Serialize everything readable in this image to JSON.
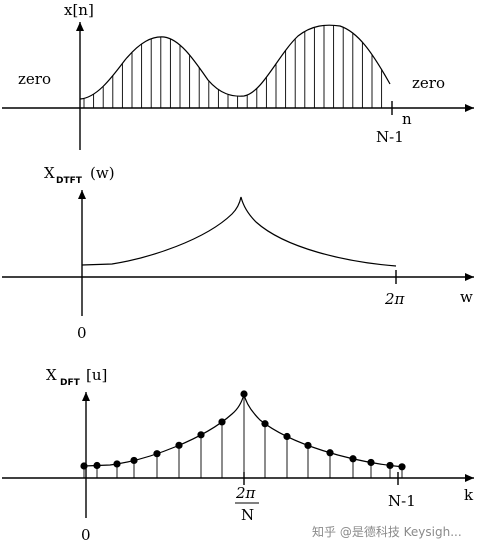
{
  "panel1": {
    "y_label": "x[n]",
    "zero_left": "zero",
    "zero_right": "zero",
    "x_axis_label": "n",
    "end_tick_label": "N-1"
  },
  "panel2": {
    "y_label_main": "X",
    "y_label_sub": "DTFT",
    "y_label_tail": "(w)",
    "origin_label": "0",
    "end_tick_label": "2π",
    "x_axis_label": "w"
  },
  "panel3": {
    "y_label_main": "X",
    "y_label_sub": "DFT",
    "y_label_tail": "[u]",
    "origin_label": "0",
    "mid_tick_numerator": "2π",
    "mid_tick_denominator": "N",
    "end_tick_label": "N-1",
    "x_axis_label": "k"
  },
  "watermark": "知乎 @是德科技 Keysigh..."
}
